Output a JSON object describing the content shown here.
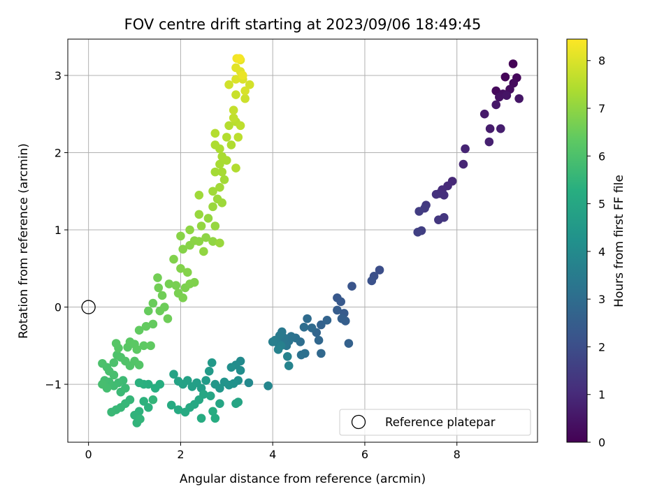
{
  "chart_data": {
    "type": "scatter",
    "title": "FOV centre drift starting at 2023/09/06 18:49:45",
    "xlabel": "Angular distance from reference (arcmin)",
    "ylabel": "Rotation from reference (arcmin)",
    "xlim": [
      -0.45,
      9.75
    ],
    "ylim": [
      -1.75,
      3.47
    ],
    "xticks": [
      0,
      2,
      4,
      6,
      8
    ],
    "yticks": [
      -1,
      0,
      1,
      2,
      3
    ],
    "xtick_labels": [
      "0",
      "2",
      "4",
      "6",
      "8"
    ],
    "ytick_labels": [
      "−1",
      "0",
      "1",
      "2",
      "3"
    ],
    "grid": true,
    "colormap": "viridis",
    "colorbar": {
      "label": "Hours from first FF file",
      "range": [
        0,
        8.45
      ],
      "ticks": [
        0,
        1,
        2,
        3,
        4,
        5,
        6,
        7,
        8
      ],
      "tick_labels": [
        "0",
        "1",
        "2",
        "3",
        "4",
        "5",
        "6",
        "7",
        "8"
      ]
    },
    "reference_point": {
      "x": 0,
      "y": 0
    },
    "legend": {
      "placement": "lower-right",
      "entries": [
        "Reference platepar"
      ]
    },
    "series": [
      {
        "columns": [
          "x",
          "y",
          "hours"
        ],
        "points": [
          [
            9.22,
            3.15,
            0.05
          ],
          [
            9.05,
            2.98,
            0.1
          ],
          [
            9.3,
            2.97,
            0.15
          ],
          [
            8.85,
            2.8,
            0.2
          ],
          [
            9.23,
            2.9,
            0.25
          ],
          [
            9.15,
            2.82,
            0.3
          ],
          [
            9.0,
            2.76,
            0.35
          ],
          [
            8.92,
            2.72,
            0.4
          ],
          [
            9.08,
            2.74,
            0.45
          ],
          [
            9.35,
            2.7,
            0.5
          ],
          [
            8.85,
            2.62,
            0.55
          ],
          [
            8.6,
            2.5,
            0.6
          ],
          [
            8.72,
            2.31,
            0.65
          ],
          [
            8.95,
            2.31,
            0.7
          ],
          [
            8.7,
            2.14,
            0.75
          ],
          [
            8.18,
            2.05,
            0.85
          ],
          [
            8.14,
            1.85,
            0.9
          ],
          [
            7.9,
            1.63,
            0.95
          ],
          [
            7.8,
            1.57,
            1.0
          ],
          [
            7.68,
            1.52,
            1.05
          ],
          [
            7.62,
            1.47,
            1.1
          ],
          [
            7.72,
            1.45,
            1.15
          ],
          [
            7.55,
            1.46,
            1.2
          ],
          [
            7.72,
            1.16,
            1.3
          ],
          [
            7.6,
            1.13,
            1.35
          ],
          [
            7.33,
            1.32,
            1.4
          ],
          [
            7.3,
            1.28,
            1.45
          ],
          [
            7.18,
            1.24,
            1.5
          ],
          [
            7.23,
            0.99,
            1.55
          ],
          [
            7.15,
            0.97,
            1.6
          ],
          [
            6.32,
            0.48,
            2.0
          ],
          [
            6.2,
            0.4,
            2.05
          ],
          [
            6.15,
            0.34,
            2.1
          ],
          [
            5.72,
            0.27,
            2.2
          ],
          [
            5.4,
            0.12,
            2.3
          ],
          [
            5.48,
            0.07,
            2.35
          ],
          [
            5.55,
            -0.08,
            2.4
          ],
          [
            5.4,
            -0.04,
            2.45
          ],
          [
            5.58,
            -0.18,
            2.5
          ],
          [
            5.5,
            -0.15,
            2.55
          ],
          [
            5.65,
            -0.47,
            2.6
          ],
          [
            5.05,
            -0.23,
            2.65
          ],
          [
            5.18,
            -0.17,
            2.7
          ],
          [
            4.95,
            -0.33,
            2.75
          ],
          [
            5.0,
            -0.43,
            2.8
          ],
          [
            5.05,
            -0.6,
            2.85
          ],
          [
            4.85,
            -0.27,
            2.9
          ],
          [
            4.75,
            -0.15,
            2.95
          ],
          [
            4.68,
            -0.26,
            3.0
          ],
          [
            4.6,
            -0.45,
            3.05
          ],
          [
            4.7,
            -0.6,
            3.1
          ],
          [
            4.62,
            -0.62,
            3.12
          ],
          [
            4.5,
            -0.4,
            3.15
          ],
          [
            4.4,
            -0.38,
            3.2
          ],
          [
            4.35,
            -0.44,
            3.25
          ],
          [
            4.3,
            -0.5,
            3.3
          ],
          [
            4.25,
            -0.4,
            3.35
          ],
          [
            4.2,
            -0.32,
            3.4
          ],
          [
            4.15,
            -0.37,
            3.45
          ],
          [
            4.1,
            -0.46,
            3.5
          ],
          [
            4.05,
            -0.43,
            3.55
          ],
          [
            4.0,
            -0.45,
            3.6
          ],
          [
            4.18,
            -0.5,
            3.65
          ],
          [
            4.12,
            -0.55,
            3.7
          ],
          [
            4.32,
            -0.64,
            3.72
          ],
          [
            4.35,
            -0.76,
            3.75
          ],
          [
            3.9,
            -1.02,
            3.85
          ],
          [
            3.48,
            -0.98,
            3.95
          ],
          [
            3.3,
            -0.7,
            4.0
          ],
          [
            3.2,
            -0.75,
            4.05
          ],
          [
            3.3,
            -0.82,
            4.1
          ],
          [
            3.1,
            -0.78,
            4.15
          ],
          [
            3.25,
            -0.95,
            4.2
          ],
          [
            3.15,
            -0.99,
            4.25
          ],
          [
            3.05,
            -1.01,
            4.3
          ],
          [
            2.95,
            -0.97,
            4.35
          ],
          [
            2.85,
            -1.05,
            4.4
          ],
          [
            2.75,
            -1.0,
            4.45
          ],
          [
            2.68,
            -0.72,
            4.5
          ],
          [
            2.62,
            -0.83,
            4.55
          ],
          [
            2.55,
            -0.95,
            4.6
          ],
          [
            2.45,
            -1.05,
            4.65
          ],
          [
            2.35,
            -0.98,
            4.7
          ],
          [
            2.25,
            -1.03,
            4.75
          ],
          [
            2.15,
            -0.95,
            4.8
          ],
          [
            2.05,
            -1.0,
            4.82
          ],
          [
            1.95,
            -0.96,
            4.85
          ],
          [
            1.85,
            -0.87,
            4.88
          ],
          [
            3.2,
            -1.25,
            4.9
          ],
          [
            3.25,
            -1.23,
            4.92
          ],
          [
            2.85,
            -1.25,
            4.95
          ],
          [
            2.65,
            -1.15,
            4.97
          ],
          [
            2.5,
            -1.13,
            5.0
          ],
          [
            2.4,
            -1.2,
            5.02
          ],
          [
            2.3,
            -1.26,
            5.05
          ],
          [
            2.2,
            -1.3,
            5.08
          ],
          [
            2.1,
            -1.36,
            5.1
          ],
          [
            1.95,
            -1.33,
            5.12
          ],
          [
            1.8,
            -1.27,
            5.15
          ],
          [
            2.45,
            -1.44,
            5.18
          ],
          [
            2.75,
            -1.44,
            5.2
          ],
          [
            2.7,
            -1.35,
            5.22
          ],
          [
            1.55,
            -1.0,
            5.25
          ],
          [
            1.45,
            -1.05,
            5.28
          ],
          [
            1.3,
            -1.0,
            5.3
          ],
          [
            1.2,
            -1.0,
            5.32
          ],
          [
            1.1,
            -0.98,
            5.35
          ],
          [
            1.2,
            -1.22,
            5.38
          ],
          [
            1.3,
            -1.3,
            5.4
          ],
          [
            1.1,
            -1.35,
            5.42
          ],
          [
            1.0,
            -1.4,
            5.45
          ],
          [
            1.05,
            -1.5,
            5.48
          ],
          [
            1.12,
            -1.45,
            5.5
          ],
          [
            1.4,
            -1.2,
            5.52
          ],
          [
            0.9,
            -1.2,
            5.55
          ],
          [
            0.8,
            -1.25,
            5.58
          ],
          [
            0.7,
            -1.3,
            5.6
          ],
          [
            0.6,
            -1.33,
            5.62
          ],
          [
            0.5,
            -1.36,
            5.65
          ],
          [
            0.7,
            -1.1,
            5.68
          ],
          [
            0.8,
            -1.05,
            5.7
          ],
          [
            0.75,
            -0.95,
            5.72
          ],
          [
            0.65,
            -0.98,
            5.75
          ],
          [
            0.55,
            -1.02,
            5.78
          ],
          [
            0.45,
            -0.97,
            5.8
          ],
          [
            0.35,
            -0.95,
            5.82
          ],
          [
            0.4,
            -1.05,
            5.85
          ],
          [
            0.3,
            -1.0,
            5.88
          ],
          [
            0.55,
            -0.88,
            5.9
          ],
          [
            0.45,
            -0.83,
            5.92
          ],
          [
            0.4,
            -0.78,
            5.95
          ],
          [
            0.3,
            -0.73,
            5.98
          ],
          [
            0.55,
            -0.72,
            6.0
          ],
          [
            0.62,
            -0.62,
            6.02
          ],
          [
            0.7,
            -0.65,
            6.05
          ],
          [
            0.8,
            -0.7,
            6.08
          ],
          [
            0.9,
            -0.76,
            6.1
          ],
          [
            1.0,
            -0.7,
            6.12
          ],
          [
            1.1,
            -0.75,
            6.15
          ],
          [
            0.65,
            -0.53,
            6.18
          ],
          [
            0.6,
            -0.47,
            6.2
          ],
          [
            0.85,
            -0.52,
            6.22
          ],
          [
            0.9,
            -0.45,
            6.25
          ],
          [
            1.0,
            -0.48,
            6.28
          ],
          [
            1.05,
            -0.55,
            6.3
          ],
          [
            1.2,
            -0.5,
            6.32
          ],
          [
            1.35,
            -0.5,
            6.35
          ],
          [
            1.1,
            -0.3,
            6.38
          ],
          [
            1.25,
            -0.25,
            6.4
          ],
          [
            1.4,
            -0.22,
            6.42
          ],
          [
            1.3,
            -0.05,
            6.45
          ],
          [
            1.4,
            0.05,
            6.48
          ],
          [
            1.55,
            -0.05,
            6.5
          ],
          [
            1.65,
            0.0,
            6.52
          ],
          [
            1.72,
            -0.15,
            6.55
          ],
          [
            1.6,
            0.15,
            6.58
          ],
          [
            1.52,
            0.25,
            6.6
          ],
          [
            1.5,
            0.38,
            6.62
          ],
          [
            1.75,
            0.3,
            6.65
          ],
          [
            1.9,
            0.28,
            6.68
          ],
          [
            1.95,
            0.18,
            6.7
          ],
          [
            2.05,
            0.12,
            6.72
          ],
          [
            2.1,
            0.25,
            6.74
          ],
          [
            2.2,
            0.3,
            6.76
          ],
          [
            2.3,
            0.32,
            6.78
          ],
          [
            1.85,
            0.62,
            6.8
          ],
          [
            2.0,
            0.5,
            6.82
          ],
          [
            2.15,
            0.45,
            6.84
          ],
          [
            2.05,
            0.75,
            6.86
          ],
          [
            2.2,
            0.8,
            6.88
          ],
          [
            2.0,
            0.92,
            6.9
          ],
          [
            2.3,
            0.86,
            6.92
          ],
          [
            2.4,
            0.85,
            6.94
          ],
          [
            2.55,
            0.9,
            6.96
          ],
          [
            2.2,
            1.0,
            6.98
          ],
          [
            2.7,
            0.85,
            7.0
          ],
          [
            2.5,
            0.72,
            7.02
          ],
          [
            2.45,
            1.05,
            7.04
          ],
          [
            2.6,
            1.15,
            7.06
          ],
          [
            2.75,
            1.05,
            7.08
          ],
          [
            2.4,
            1.2,
            7.1
          ],
          [
            2.85,
            0.83,
            7.12
          ],
          [
            2.7,
            1.3,
            7.14
          ],
          [
            2.8,
            1.4,
            7.16
          ],
          [
            2.9,
            1.35,
            7.18
          ],
          [
            2.4,
            1.45,
            7.2
          ],
          [
            2.7,
            1.5,
            7.22
          ],
          [
            2.85,
            1.55,
            7.24
          ],
          [
            2.95,
            1.65,
            7.26
          ],
          [
            2.75,
            1.75,
            7.28
          ],
          [
            2.9,
            1.75,
            7.3
          ],
          [
            2.85,
            1.85,
            7.32
          ],
          [
            2.9,
            1.95,
            7.34
          ],
          [
            3.0,
            1.9,
            7.36
          ],
          [
            2.85,
            2.05,
            7.38
          ],
          [
            2.75,
            2.1,
            7.4
          ],
          [
            3.1,
            2.1,
            7.42
          ],
          [
            3.2,
            1.8,
            7.44
          ],
          [
            3.0,
            2.2,
            7.46
          ],
          [
            2.75,
            2.25,
            7.48
          ],
          [
            3.05,
            2.35,
            7.5
          ],
          [
            3.2,
            2.4,
            7.55
          ],
          [
            3.25,
            2.2,
            7.58
          ],
          [
            3.3,
            2.35,
            7.6
          ],
          [
            3.15,
            2.45,
            7.65
          ],
          [
            3.15,
            2.55,
            7.7
          ],
          [
            3.2,
            2.75,
            7.75
          ],
          [
            3.4,
            2.7,
            7.8
          ],
          [
            3.05,
            2.88,
            7.85
          ],
          [
            3.5,
            2.88,
            7.9
          ],
          [
            3.4,
            2.8,
            7.95
          ],
          [
            3.35,
            2.95,
            8.0
          ],
          [
            3.2,
            2.95,
            8.02
          ],
          [
            3.3,
            3.05,
            8.05
          ],
          [
            3.2,
            3.1,
            8.1
          ],
          [
            3.3,
            3.2,
            8.15
          ],
          [
            3.35,
            3.0,
            8.2
          ],
          [
            3.22,
            3.22,
            8.3
          ],
          [
            3.28,
            3.22,
            8.35
          ]
        ]
      }
    ]
  }
}
